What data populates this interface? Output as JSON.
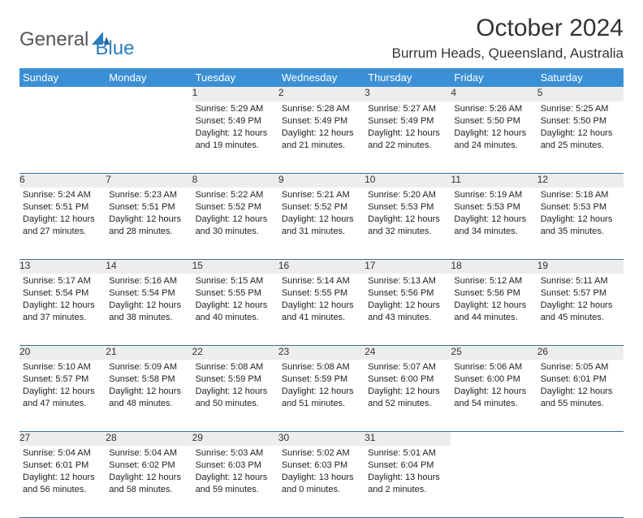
{
  "logo": {
    "text1": "General",
    "text2": "Blue"
  },
  "title": "October 2024",
  "location": "Burrum Heads, Queensland, Australia",
  "colors": {
    "header_bg": "#3b8fd4",
    "header_text": "#ffffff",
    "daynum_bg": "#eceded",
    "rule": "#3b6f9e",
    "logo_blue": "#2b7fbf"
  },
  "weekdays": [
    "Sunday",
    "Monday",
    "Tuesday",
    "Wednesday",
    "Thursday",
    "Friday",
    "Saturday"
  ],
  "first_weekday_index": 2,
  "days": [
    {
      "n": 1,
      "sr": "5:29 AM",
      "ss": "5:49 PM",
      "dl": "12 hours and 19 minutes."
    },
    {
      "n": 2,
      "sr": "5:28 AM",
      "ss": "5:49 PM",
      "dl": "12 hours and 21 minutes."
    },
    {
      "n": 3,
      "sr": "5:27 AM",
      "ss": "5:49 PM",
      "dl": "12 hours and 22 minutes."
    },
    {
      "n": 4,
      "sr": "5:26 AM",
      "ss": "5:50 PM",
      "dl": "12 hours and 24 minutes."
    },
    {
      "n": 5,
      "sr": "5:25 AM",
      "ss": "5:50 PM",
      "dl": "12 hours and 25 minutes."
    },
    {
      "n": 6,
      "sr": "5:24 AM",
      "ss": "5:51 PM",
      "dl": "12 hours and 27 minutes."
    },
    {
      "n": 7,
      "sr": "5:23 AM",
      "ss": "5:51 PM",
      "dl": "12 hours and 28 minutes."
    },
    {
      "n": 8,
      "sr": "5:22 AM",
      "ss": "5:52 PM",
      "dl": "12 hours and 30 minutes."
    },
    {
      "n": 9,
      "sr": "5:21 AM",
      "ss": "5:52 PM",
      "dl": "12 hours and 31 minutes."
    },
    {
      "n": 10,
      "sr": "5:20 AM",
      "ss": "5:53 PM",
      "dl": "12 hours and 32 minutes."
    },
    {
      "n": 11,
      "sr": "5:19 AM",
      "ss": "5:53 PM",
      "dl": "12 hours and 34 minutes."
    },
    {
      "n": 12,
      "sr": "5:18 AM",
      "ss": "5:53 PM",
      "dl": "12 hours and 35 minutes."
    },
    {
      "n": 13,
      "sr": "5:17 AM",
      "ss": "5:54 PM",
      "dl": "12 hours and 37 minutes."
    },
    {
      "n": 14,
      "sr": "5:16 AM",
      "ss": "5:54 PM",
      "dl": "12 hours and 38 minutes."
    },
    {
      "n": 15,
      "sr": "5:15 AM",
      "ss": "5:55 PM",
      "dl": "12 hours and 40 minutes."
    },
    {
      "n": 16,
      "sr": "5:14 AM",
      "ss": "5:55 PM",
      "dl": "12 hours and 41 minutes."
    },
    {
      "n": 17,
      "sr": "5:13 AM",
      "ss": "5:56 PM",
      "dl": "12 hours and 43 minutes."
    },
    {
      "n": 18,
      "sr": "5:12 AM",
      "ss": "5:56 PM",
      "dl": "12 hours and 44 minutes."
    },
    {
      "n": 19,
      "sr": "5:11 AM",
      "ss": "5:57 PM",
      "dl": "12 hours and 45 minutes."
    },
    {
      "n": 20,
      "sr": "5:10 AM",
      "ss": "5:57 PM",
      "dl": "12 hours and 47 minutes."
    },
    {
      "n": 21,
      "sr": "5:09 AM",
      "ss": "5:58 PM",
      "dl": "12 hours and 48 minutes."
    },
    {
      "n": 22,
      "sr": "5:08 AM",
      "ss": "5:59 PM",
      "dl": "12 hours and 50 minutes."
    },
    {
      "n": 23,
      "sr": "5:08 AM",
      "ss": "5:59 PM",
      "dl": "12 hours and 51 minutes."
    },
    {
      "n": 24,
      "sr": "5:07 AM",
      "ss": "6:00 PM",
      "dl": "12 hours and 52 minutes."
    },
    {
      "n": 25,
      "sr": "5:06 AM",
      "ss": "6:00 PM",
      "dl": "12 hours and 54 minutes."
    },
    {
      "n": 26,
      "sr": "5:05 AM",
      "ss": "6:01 PM",
      "dl": "12 hours and 55 minutes."
    },
    {
      "n": 27,
      "sr": "5:04 AM",
      "ss": "6:01 PM",
      "dl": "12 hours and 56 minutes."
    },
    {
      "n": 28,
      "sr": "5:04 AM",
      "ss": "6:02 PM",
      "dl": "12 hours and 58 minutes."
    },
    {
      "n": 29,
      "sr": "5:03 AM",
      "ss": "6:03 PM",
      "dl": "12 hours and 59 minutes."
    },
    {
      "n": 30,
      "sr": "5:02 AM",
      "ss": "6:03 PM",
      "dl": "13 hours and 0 minutes."
    },
    {
      "n": 31,
      "sr": "5:01 AM",
      "ss": "6:04 PM",
      "dl": "13 hours and 2 minutes."
    }
  ],
  "labels": {
    "sunrise": "Sunrise:",
    "sunset": "Sunset:",
    "daylight": "Daylight:"
  }
}
